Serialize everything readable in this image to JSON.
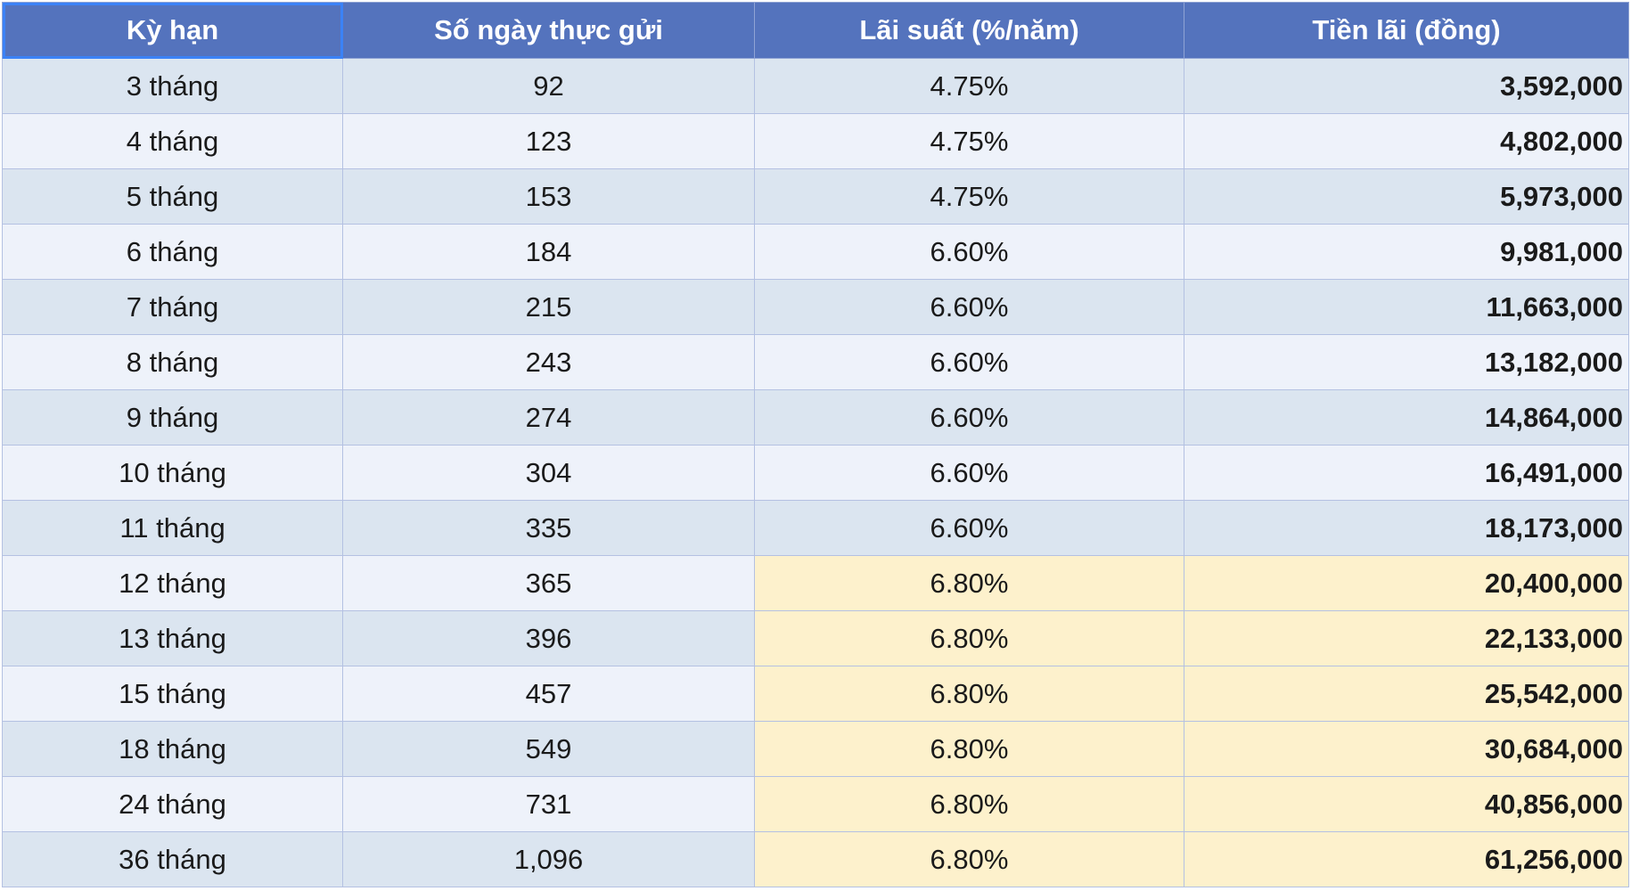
{
  "headers": [
    "Kỳ hạn",
    "Số ngày thực gửi",
    "Lãi suất (%/năm)",
    "Tiền lãi (đồng)"
  ],
  "rows": [
    {
      "term": "3 tháng",
      "days": "92",
      "rate": "4.75%",
      "interest": "3,592,000",
      "highlight": false
    },
    {
      "term": "4 tháng",
      "days": "123",
      "rate": "4.75%",
      "interest": "4,802,000",
      "highlight": false
    },
    {
      "term": "5 tháng",
      "days": "153",
      "rate": "4.75%",
      "interest": "5,973,000",
      "highlight": false
    },
    {
      "term": "6 tháng",
      "days": "184",
      "rate": "6.60%",
      "interest": "9,981,000",
      "highlight": false
    },
    {
      "term": "7 tháng",
      "days": "215",
      "rate": "6.60%",
      "interest": "11,663,000",
      "highlight": false
    },
    {
      "term": "8 tháng",
      "days": "243",
      "rate": "6.60%",
      "interest": "13,182,000",
      "highlight": false
    },
    {
      "term": "9 tháng",
      "days": "274",
      "rate": "6.60%",
      "interest": "14,864,000",
      "highlight": false
    },
    {
      "term": "10 tháng",
      "days": "304",
      "rate": "6.60%",
      "interest": "16,491,000",
      "highlight": false
    },
    {
      "term": "11 tháng",
      "days": "335",
      "rate": "6.60%",
      "interest": "18,173,000",
      "highlight": false
    },
    {
      "term": "12 tháng",
      "days": "365",
      "rate": "6.80%",
      "interest": "20,400,000",
      "highlight": true
    },
    {
      "term": "13 tháng",
      "days": "396",
      "rate": "6.80%",
      "interest": "22,133,000",
      "highlight": true
    },
    {
      "term": "15 tháng",
      "days": "457",
      "rate": "6.80%",
      "interest": "25,542,000",
      "highlight": true
    },
    {
      "term": "18 tháng",
      "days": "549",
      "rate": "6.80%",
      "interest": "30,684,000",
      "highlight": true
    },
    {
      "term": "24 tháng",
      "days": "731",
      "rate": "6.80%",
      "interest": "40,856,000",
      "highlight": true
    },
    {
      "term": "36 tháng",
      "days": "1,096",
      "rate": "6.80%",
      "interest": "61,256,000",
      "highlight": true
    }
  ],
  "colors": {
    "header_bg": "#5473bd",
    "row_odd": "#dbe5f0",
    "row_even": "#eef2fa",
    "highlight": "#fdf1cc",
    "selection": "#3b82f6"
  }
}
